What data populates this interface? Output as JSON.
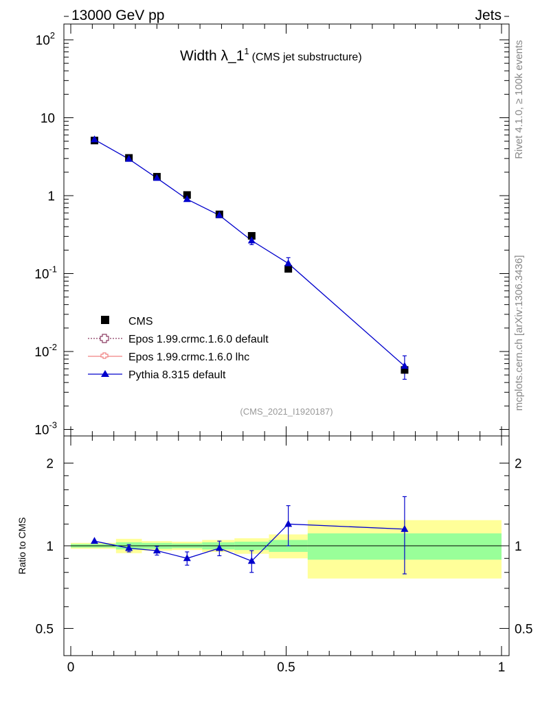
{
  "header": {
    "left_label": "13000 GeV pp",
    "right_label": "Jets"
  },
  "chart_data": [
    {
      "type": "scatter",
      "panel": "main",
      "title_main": "Width λ_1",
      "title_sup": "1",
      "title_suffix": "(CMS jet substructure)",
      "yscale": "log",
      "ylim": [
        0.001,
        200
      ],
      "xlim": [
        0,
        1
      ],
      "y_ticks": [
        {
          "mant": "10",
          "exp": "-3",
          "value": 0.001
        },
        {
          "mant": "10",
          "exp": "-2",
          "value": 0.01
        },
        {
          "mant": "10",
          "exp": "-1",
          "value": 0.1
        },
        {
          "mant": "1",
          "exp": "",
          "value": 1
        },
        {
          "mant": "10",
          "exp": "",
          "value": 10
        },
        {
          "mant": "10",
          "exp": "2",
          "value": 100
        }
      ],
      "x": [
        0.055,
        0.135,
        0.2,
        0.27,
        0.345,
        0.42,
        0.505,
        0.775
      ],
      "series": [
        {
          "name": "CMS",
          "marker": "square",
          "color": "#000000",
          "values": [
            5.1,
            3.05,
            1.75,
            1.02,
            0.575,
            0.305,
            0.115,
            0.0058
          ]
        },
        {
          "name": "Epos 1.99.crmc.1.6.0 default",
          "marker": "open-cross",
          "color": "#8b3a62",
          "linestyle": "dotted",
          "values": []
        },
        {
          "name": "Epos 1.99.crmc.1.6.0 lhc",
          "marker": "open-cross",
          "color": "#f08080",
          "linestyle": "solid",
          "values": []
        },
        {
          "name": "Pythia 8.315 default",
          "marker": "triangle",
          "color": "#0000cc",
          "values": [
            5.25,
            2.95,
            1.68,
            0.9,
            0.56,
            0.265,
            0.135,
            0.0065
          ],
          "err_lo": [
            0,
            0,
            0,
            0,
            0,
            0.03,
            0.02,
            0.0021
          ],
          "err_hi": [
            0,
            0,
            0,
            0,
            0,
            0.03,
            0.025,
            0.0023
          ]
        }
      ],
      "watermark": "(CMS_2021_I1920187)"
    },
    {
      "type": "line",
      "panel": "ratio",
      "ylabel": "Ratio to CMS",
      "ylim": [
        0.4,
        2.4
      ],
      "yscale": "log",
      "y_ticks": [
        "0.5",
        "1",
        "2"
      ],
      "xlim": [
        0,
        1
      ],
      "x_ticks": [
        "0",
        "0.5",
        "1"
      ],
      "bins": [
        {
          "lo": 0.0,
          "hi": 0.105,
          "stat": 0.015,
          "total": 0.025
        },
        {
          "lo": 0.105,
          "hi": 0.165,
          "stat": 0.03,
          "total": 0.06
        },
        {
          "lo": 0.165,
          "hi": 0.235,
          "stat": 0.025,
          "total": 0.04
        },
        {
          "lo": 0.235,
          "hi": 0.305,
          "stat": 0.02,
          "total": 0.035
        },
        {
          "lo": 0.305,
          "hi": 0.38,
          "stat": 0.03,
          "total": 0.05
        },
        {
          "lo": 0.38,
          "hi": 0.46,
          "stat": 0.035,
          "total": 0.065
        },
        {
          "lo": 0.46,
          "hi": 0.55,
          "stat": 0.05,
          "total": 0.1
        },
        {
          "lo": 0.55,
          "hi": 1.0,
          "stat": 0.11,
          "total": 0.24
        }
      ],
      "x": [
        0.055,
        0.135,
        0.2,
        0.27,
        0.345,
        0.42,
        0.505,
        0.775
      ],
      "ratio": [
        1.04,
        0.98,
        0.96,
        0.9,
        0.98,
        0.88,
        1.2,
        1.15
      ],
      "ratio_err_lo": [
        0,
        0.03,
        0.035,
        0.05,
        0.06,
        0.08,
        0.2,
        0.36
      ],
      "ratio_err_hi": [
        0,
        0.03,
        0.035,
        0.05,
        0.06,
        0.08,
        0.2,
        0.36
      ]
    }
  ],
  "side_labels": {
    "rivet": "Rivet 4.1.0, ≥ 100k events",
    "mcplots": "mcplots.cern.ch [arXiv:1306.3436]"
  }
}
